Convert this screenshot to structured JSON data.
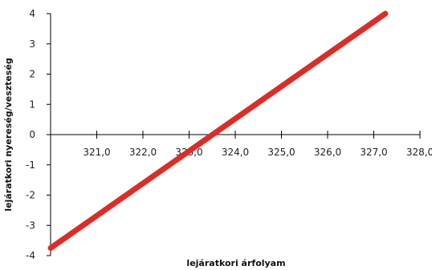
{
  "chart_data": {
    "type": "line",
    "title": "",
    "xlabel": "lejáratkori árfolyam",
    "ylabel": "lejáratkori nyereség/veszteség",
    "xlim": [
      320.0,
      328.0
    ],
    "ylim": [
      -4,
      4
    ],
    "x_ticks": [
      321.0,
      322.0,
      323.0,
      324.0,
      325.0,
      326.0,
      327.0,
      328.0
    ],
    "x_tick_labels": [
      "321,0",
      "322,0",
      "323,0",
      "324,0",
      "325,0",
      "326,0",
      "327,0",
      "328,0"
    ],
    "y_ticks": [
      4,
      3,
      2,
      1,
      0,
      -1,
      -2,
      -3,
      -4
    ],
    "y_tick_labels": [
      "4",
      "3",
      "2",
      "1",
      "0",
      "-1",
      "-2",
      "-3",
      "-4"
    ],
    "grid": false,
    "legend": "none",
    "series": [
      {
        "color": "#e02b25",
        "points": [
          {
            "x": 320.0,
            "y": -3.75
          },
          {
            "x": 327.25,
            "y": 4.0
          }
        ]
      }
    ]
  }
}
